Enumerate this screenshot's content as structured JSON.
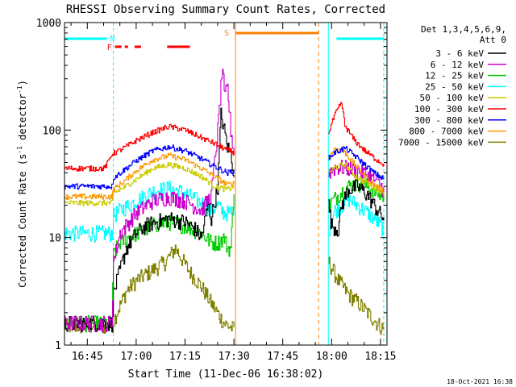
{
  "chart_data": {
    "type": "line",
    "title": "RHESSI Observing Summary Count Rates, Corrected",
    "xlabel": "Start Time (11-Dec-06 16:38:02)",
    "ylabel": "Corrected Count Rate (s",
    "ylabel_sup1": "-1",
    "ylabel_mid": " detector",
    "ylabel_sup2": "-1",
    "ylabel_end": ")",
    "y_scale": "log",
    "ylim": [
      1,
      1000
    ],
    "y_ticks": [
      {
        "value": 1,
        "label": "1"
      },
      {
        "value": 10,
        "label": "10"
      },
      {
        "value": 100,
        "label": "100"
      },
      {
        "value": 1000,
        "label": "1000"
      }
    ],
    "x_units": "minutes of day",
    "xlim": [
      998,
      1097
    ],
    "x_ticks": [
      {
        "value": 1005,
        "label": "16:45"
      },
      {
        "value": 1020,
        "label": "17:00"
      },
      {
        "value": 1035,
        "label": "17:15"
      },
      {
        "value": 1050,
        "label": "17:30"
      },
      {
        "value": 1065,
        "label": "17:45"
      },
      {
        "value": 1080,
        "label": "18:00"
      },
      {
        "value": 1095,
        "label": "18:15"
      }
    ],
    "legend_position": "right",
    "legend_header": [
      "Det 1,3,4,5,6,9,",
      "Att 0"
    ],
    "series": [
      {
        "name": "3 - 6 keV",
        "color": "#000000",
        "seg1": [
          [
            998,
            1.6
          ],
          [
            1012.5,
            1.6
          ],
          [
            1013,
            3
          ],
          [
            1015,
            5
          ],
          [
            1017,
            8
          ],
          [
            1020,
            11
          ],
          [
            1023,
            13
          ],
          [
            1026,
            14
          ],
          [
            1030,
            15
          ],
          [
            1035,
            14
          ],
          [
            1038,
            12
          ],
          [
            1040,
            10
          ],
          [
            1042,
            20
          ],
          [
            1043,
            15
          ],
          [
            1045,
            30
          ],
          [
            1046,
            140
          ],
          [
            1047,
            100
          ],
          [
            1048,
            70
          ],
          [
            1049,
            60
          ],
          [
            1050,
            40
          ]
        ],
        "seg2": [
          [
            1079,
            20
          ],
          [
            1080,
            13
          ],
          [
            1082,
            12
          ],
          [
            1083,
            20
          ],
          [
            1085,
            28
          ],
          [
            1088,
            30
          ],
          [
            1091,
            25
          ],
          [
            1094,
            18
          ],
          [
            1096,
            15
          ]
        ]
      },
      {
        "name": "6 - 12 keV",
        "color": "#cc00cc",
        "seg1": [
          [
            998,
            1.6
          ],
          [
            1012.5,
            1.6
          ],
          [
            1013,
            6
          ],
          [
            1015,
            11
          ],
          [
            1020,
            17
          ],
          [
            1025,
            22
          ],
          [
            1030,
            24
          ],
          [
            1035,
            22
          ],
          [
            1040,
            18
          ],
          [
            1043,
            25
          ],
          [
            1045,
            100
          ],
          [
            1046,
            250
          ],
          [
            1046.5,
            400
          ],
          [
            1047,
            200
          ],
          [
            1048,
            250
          ],
          [
            1049,
            100
          ],
          [
            1050,
            60
          ]
        ],
        "seg2": [
          [
            1079,
            40
          ],
          [
            1081,
            45
          ],
          [
            1083,
            45
          ],
          [
            1086,
            44
          ],
          [
            1090,
            40
          ],
          [
            1094,
            33
          ],
          [
            1096,
            28
          ]
        ]
      },
      {
        "name": "12 - 25 keV",
        "color": "#00cc00",
        "seg1": [
          [
            998,
            1.6
          ],
          [
            1012.5,
            1.6
          ],
          [
            1013,
            7
          ],
          [
            1015,
            9
          ],
          [
            1020,
            11
          ],
          [
            1025,
            13
          ],
          [
            1030,
            14
          ],
          [
            1035,
            13
          ],
          [
            1040,
            11
          ],
          [
            1043,
            9
          ],
          [
            1045,
            9
          ],
          [
            1047,
            10
          ],
          [
            1048,
            8
          ],
          [
            1049,
            8
          ],
          [
            1050,
            30
          ]
        ],
        "seg2": [
          [
            1079,
            20
          ],
          [
            1082,
            25
          ],
          [
            1085,
            30
          ],
          [
            1088,
            32
          ],
          [
            1091,
            30
          ],
          [
            1094,
            26
          ],
          [
            1096,
            24
          ]
        ]
      },
      {
        "name": "25 - 50 keV",
        "color": "#00ffff",
        "seg1": [
          [
            998,
            11
          ],
          [
            1012.5,
            11
          ],
          [
            1013,
            16
          ],
          [
            1015,
            18
          ],
          [
            1020,
            22
          ],
          [
            1025,
            27
          ],
          [
            1030,
            29
          ],
          [
            1035,
            26
          ],
          [
            1040,
            21
          ],
          [
            1043,
            18
          ],
          [
            1045,
            20
          ],
          [
            1046,
            18
          ],
          [
            1047,
            17
          ],
          [
            1048,
            17
          ],
          [
            1049,
            17
          ],
          [
            1050,
            20
          ]
        ],
        "seg2": [
          [
            1079,
            12
          ],
          [
            1081,
            18
          ],
          [
            1083,
            20
          ],
          [
            1085,
            23
          ],
          [
            1088,
            20
          ],
          [
            1091,
            17
          ],
          [
            1094,
            14
          ],
          [
            1096,
            12
          ]
        ]
      },
      {
        "name": "50 - 100 keV",
        "color": "#cccc00",
        "seg1": [
          [
            998,
            21
          ],
          [
            1012.5,
            21
          ],
          [
            1013,
            26
          ],
          [
            1016,
            29
          ],
          [
            1020,
            35
          ],
          [
            1025,
            44
          ],
          [
            1030,
            48
          ],
          [
            1035,
            44
          ],
          [
            1040,
            37
          ],
          [
            1044,
            30
          ],
          [
            1048,
            28
          ],
          [
            1050,
            30
          ]
        ],
        "seg2": [
          [
            1079,
            40
          ],
          [
            1081,
            45
          ],
          [
            1084,
            48
          ],
          [
            1087,
            38
          ],
          [
            1090,
            33
          ],
          [
            1093,
            29
          ],
          [
            1096,
            26
          ]
        ]
      },
      {
        "name": "100 - 300 keV",
        "color": "#ff0000",
        "seg1": [
          [
            998,
            44
          ],
          [
            1010,
            44
          ],
          [
            1011,
            48
          ],
          [
            1012.5,
            60
          ],
          [
            1015,
            65
          ],
          [
            1020,
            80
          ],
          [
            1025,
            95
          ],
          [
            1030,
            108
          ],
          [
            1035,
            100
          ],
          [
            1040,
            85
          ],
          [
            1044,
            75
          ],
          [
            1048,
            65
          ],
          [
            1050,
            62
          ]
        ],
        "seg2": [
          [
            1079,
            95
          ],
          [
            1081,
            140
          ],
          [
            1083,
            180
          ],
          [
            1084,
            110
          ],
          [
            1087,
            80
          ],
          [
            1090,
            65
          ],
          [
            1093,
            55
          ],
          [
            1096,
            48
          ]
        ]
      },
      {
        "name": "300 - 800 keV",
        "color": "#0000ff",
        "seg1": [
          [
            998,
            30
          ],
          [
            1012.5,
            30
          ],
          [
            1013,
            36
          ],
          [
            1016,
            42
          ],
          [
            1020,
            52
          ],
          [
            1025,
            64
          ],
          [
            1030,
            70
          ],
          [
            1035,
            64
          ],
          [
            1040,
            54
          ],
          [
            1044,
            46
          ],
          [
            1048,
            40
          ],
          [
            1050,
            42
          ]
        ],
        "seg2": [
          [
            1079,
            55
          ],
          [
            1081,
            62
          ],
          [
            1084,
            68
          ],
          [
            1087,
            58
          ],
          [
            1090,
            48
          ],
          [
            1093,
            40
          ],
          [
            1096,
            35
          ]
        ]
      },
      {
        "name": "800 - 7000 keV",
        "color": "#ff9900",
        "seg1": [
          [
            998,
            24
          ],
          [
            1012.5,
            24
          ],
          [
            1013,
            28
          ],
          [
            1016,
            33
          ],
          [
            1020,
            42
          ],
          [
            1025,
            53
          ],
          [
            1030,
            58
          ],
          [
            1035,
            53
          ],
          [
            1040,
            44
          ],
          [
            1044,
            37
          ],
          [
            1048,
            31
          ],
          [
            1050,
            32
          ]
        ],
        "seg2": [
          [
            1079,
            55
          ],
          [
            1081,
            68
          ],
          [
            1084,
            62
          ],
          [
            1087,
            48
          ],
          [
            1090,
            38
          ],
          [
            1093,
            31
          ],
          [
            1096,
            27
          ]
        ]
      },
      {
        "name": "7000 - 15000 keV",
        "color": "#808000",
        "seg1": [
          [
            998,
            1.5
          ],
          [
            1012.5,
            1.5
          ],
          [
            1014,
            2
          ],
          [
            1017,
            3.2
          ],
          [
            1020,
            4
          ],
          [
            1025,
            5
          ],
          [
            1029,
            6
          ],
          [
            1032,
            8
          ],
          [
            1036,
            5
          ],
          [
            1040,
            3.5
          ],
          [
            1044,
            2.2
          ],
          [
            1047,
            1.6
          ],
          [
            1050,
            1.4
          ]
        ],
        "seg2": [
          [
            1079,
            6
          ],
          [
            1082,
            4
          ],
          [
            1085,
            3
          ],
          [
            1088,
            2.5
          ],
          [
            1091,
            2
          ],
          [
            1094,
            1.6
          ],
          [
            1096,
            1.4
          ]
        ]
      }
    ],
    "annotations": {
      "night_bars": [
        {
          "x1": 998,
          "x2": 1011,
          "label": ""
        },
        {
          "x1": 1081.5,
          "x2": 1096,
          "label": ""
        }
      ],
      "night_label": "N",
      "saa_bar": {
        "x1": 1050.5,
        "x2": 1076
      },
      "saa_label": "S",
      "flare_label": "F",
      "flare_segments": [
        [
          1013.5,
          1015.5
        ],
        [
          1016.5,
          1017.5
        ],
        [
          1019.5,
          1021.5
        ],
        [
          1029.5,
          1036.5
        ]
      ],
      "cyan_dashed_x": [
        1013,
        1096
      ],
      "cyan_solid_x": [
        998,
        1079
      ],
      "orange_solid_x": 1050.5,
      "orange_dashed_x": 1076
    }
  },
  "footer": {
    "timestamp": "18-Oct-2021 16:38"
  }
}
